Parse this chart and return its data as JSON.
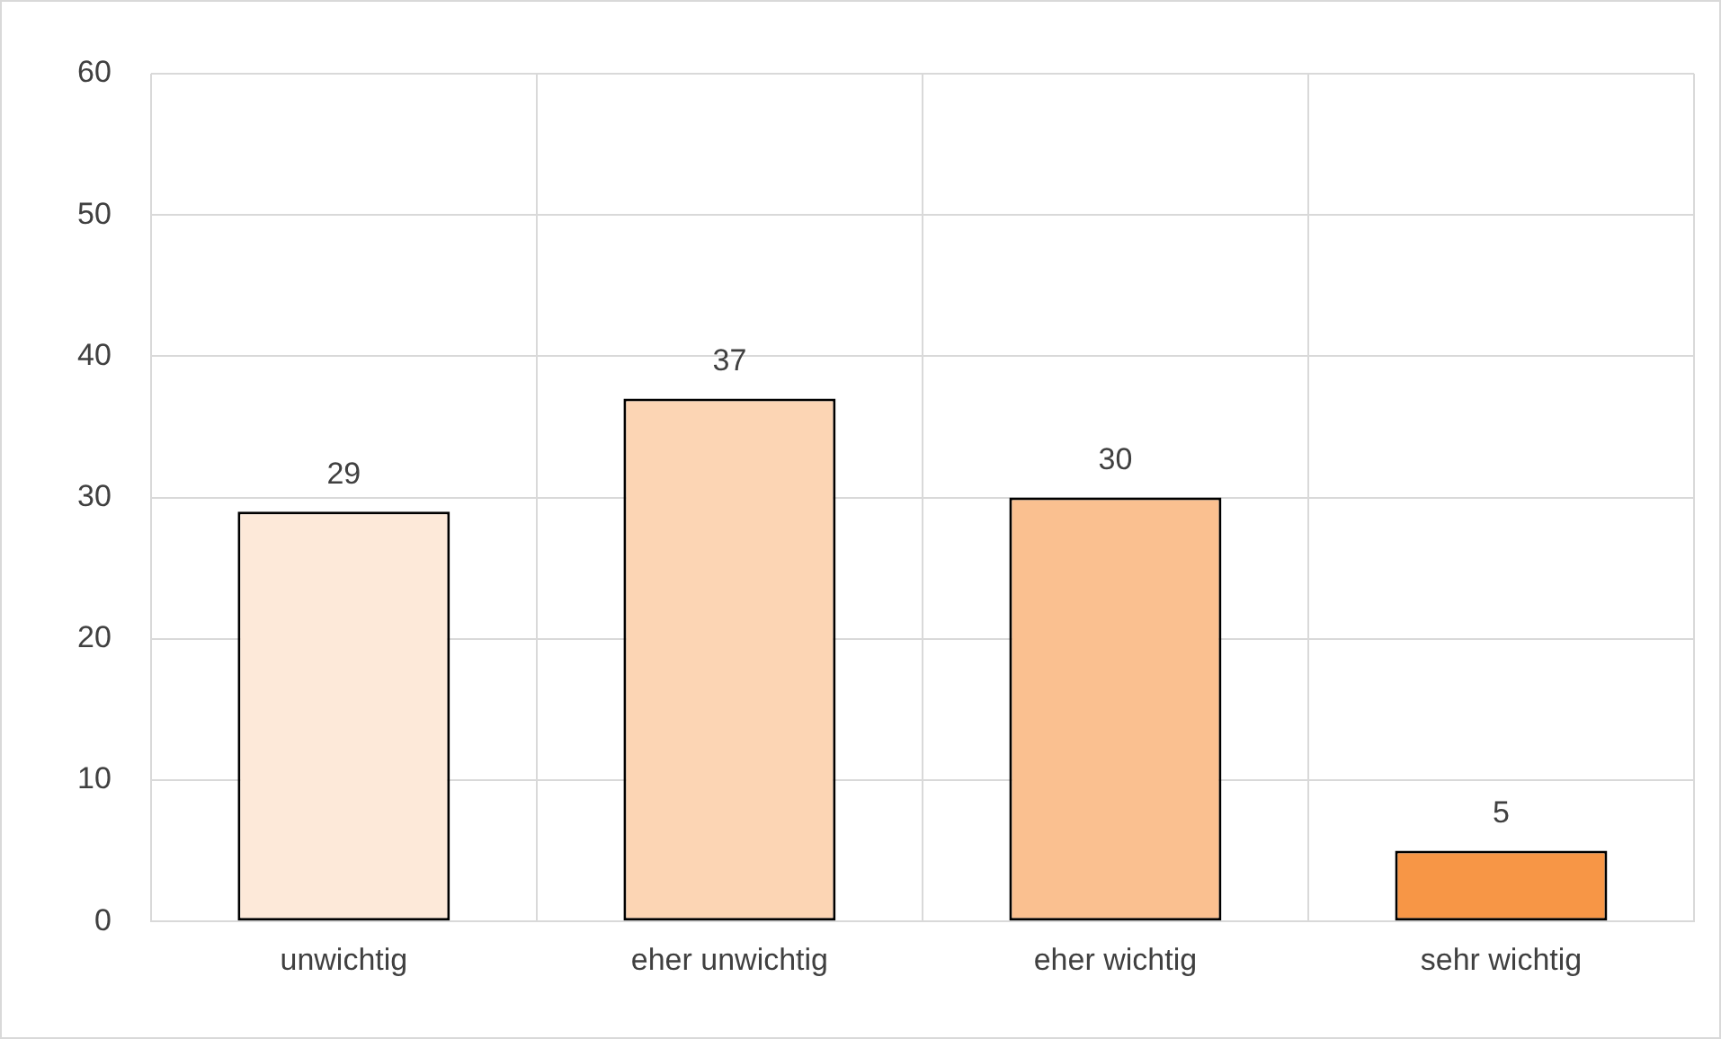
{
  "chart_data": {
    "type": "bar",
    "categories": [
      "unwichtig",
      "eher unwichtig",
      "eher wichtig",
      "sehr wichtig"
    ],
    "values": [
      29,
      37,
      30,
      5
    ],
    "colors": [
      "#fde9d9",
      "#fcd5b4",
      "#fac090",
      "#f79646"
    ],
    "ylim": [
      0,
      60
    ],
    "yticks": [
      0,
      10,
      20,
      30,
      40,
      50,
      60
    ],
    "grid": true,
    "data_labels": true,
    "legend": false
  }
}
